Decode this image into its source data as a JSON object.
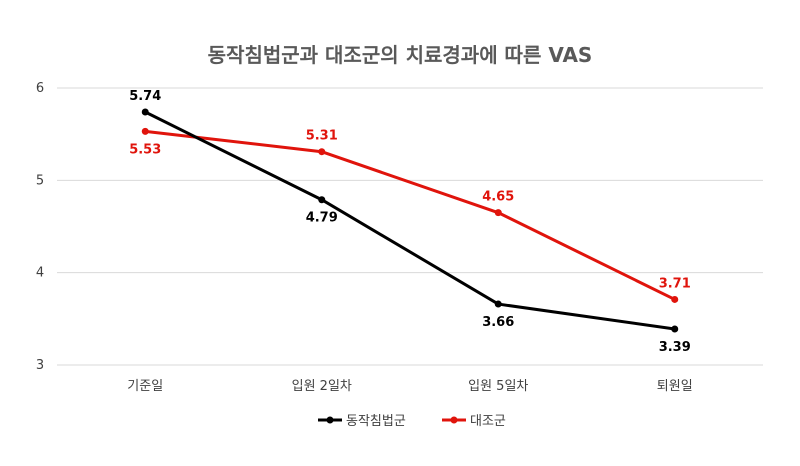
{
  "chart_data": {
    "type": "line",
    "title": "동작침법군과 대조군의 치료경과에 따른 VAS",
    "xlabel": "",
    "ylabel": "",
    "categories": [
      "기준일",
      "입원 2일차",
      "입원 5일차",
      "퇴원일"
    ],
    "ylim": [
      3,
      6
    ],
    "yticks": [
      3,
      4,
      5,
      6
    ],
    "grid": true,
    "legend": "bottom",
    "series": [
      {
        "name": "동작침법군",
        "color": "#000000",
        "values": [
          5.74,
          4.79,
          3.66,
          3.39
        ],
        "labels": [
          "5.74",
          "4.79",
          "3.66",
          "3.39"
        ]
      },
      {
        "name": "대조군",
        "color": "#e0140c",
        "values": [
          5.53,
          5.31,
          4.65,
          3.71
        ],
        "labels": [
          "5.53",
          "5.31",
          "4.65",
          "3.71"
        ]
      }
    ]
  }
}
